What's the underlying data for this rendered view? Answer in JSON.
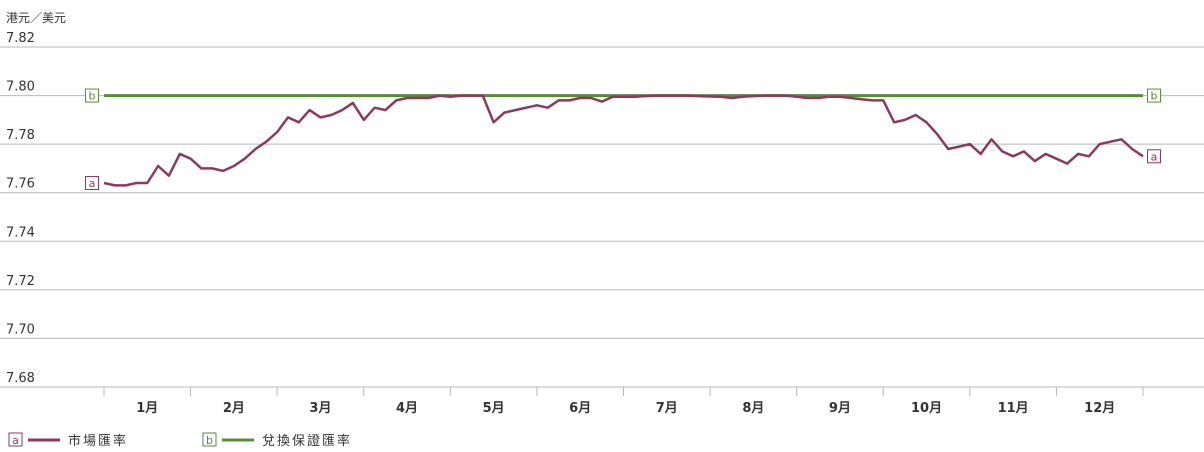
{
  "chart_data": {
    "type": "line",
    "y_label": "港元／美元",
    "ylim": [
      7.68,
      7.82
    ],
    "yticks": [
      7.68,
      {
        "value": 7.7,
        "label": "7.70"
      },
      7.72,
      7.74,
      7.76,
      7.78,
      {
        "value": 7.8,
        "label": "7.80"
      },
      7.82
    ],
    "grid": true,
    "categories": [
      null,
      null,
      null,
      null,
      "1月",
      null,
      null,
      null,
      null,
      null,
      null,
      null,
      "2月",
      null,
      null,
      null,
      null,
      null,
      null,
      null,
      "3月",
      null,
      null,
      null,
      null,
      null,
      null,
      null,
      "4月",
      null,
      null,
      null,
      null,
      null,
      null,
      null,
      "5月",
      null,
      null,
      null,
      null,
      null,
      null,
      null,
      "6月",
      null,
      null,
      null,
      null,
      null,
      null,
      null,
      "7月",
      null,
      null,
      null,
      null,
      null,
      null,
      null,
      "8月",
      null,
      null,
      null,
      null,
      null,
      null,
      null,
      "9月",
      null,
      null,
      null,
      null,
      null,
      null,
      null,
      "10月",
      null,
      null,
      null,
      null,
      null,
      null,
      null,
      "11月",
      null,
      null,
      null,
      null,
      null,
      null,
      null,
      "12月",
      null,
      null,
      null,
      null
    ],
    "series": [
      {
        "name": "市場匯率",
        "marker": "a",
        "color": "#8b3a5e",
        "values": [
          7.764,
          7.763,
          7.763,
          7.764,
          7.764,
          7.771,
          7.767,
          7.776,
          7.774,
          7.77,
          7.77,
          7.769,
          7.771,
          7.774,
          7.778,
          7.781,
          7.785,
          7.791,
          7.789,
          7.794,
          7.791,
          7.792,
          7.794,
          7.797,
          7.79,
          7.795,
          7.794,
          7.798,
          7.799,
          7.799,
          7.799,
          7.8,
          7.7995,
          7.8,
          7.8,
          7.8,
          7.789,
          7.793,
          7.794,
          7.795,
          7.796,
          7.795,
          7.798,
          7.798,
          7.799,
          7.799,
          7.7975,
          7.7995,
          7.7995,
          7.7995,
          7.7998,
          7.8,
          7.8,
          7.8,
          7.8,
          7.7998,
          7.7996,
          7.7995,
          7.799,
          7.7995,
          7.7998,
          7.8,
          7.8,
          7.8,
          7.7995,
          7.799,
          7.799,
          7.7995,
          7.7995,
          7.799,
          7.7985,
          7.798,
          7.798,
          7.789,
          7.79,
          7.792,
          7.789,
          7.784,
          7.778,
          7.779,
          7.78,
          7.776,
          7.782,
          7.777,
          7.775,
          7.777,
          7.773,
          7.776,
          7.774,
          7.772,
          7.776,
          7.775,
          7.78,
          7.781,
          7.782,
          7.778,
          7.775
        ]
      },
      {
        "name": "兌換保證匯率",
        "marker": "b",
        "color": "#5b8a3a",
        "values": [
          7.8,
          7.8,
          7.8,
          7.8,
          7.8,
          7.8,
          7.8,
          7.8,
          7.8,
          7.8,
          7.8,
          7.8,
          7.8,
          7.8,
          7.8,
          7.8,
          7.8,
          7.8,
          7.8,
          7.8,
          7.8,
          7.8,
          7.8,
          7.8,
          7.8,
          7.8,
          7.8,
          7.8,
          7.8,
          7.8,
          7.8,
          7.8,
          7.8,
          7.8,
          7.8,
          7.8,
          7.8,
          7.8,
          7.8,
          7.8,
          7.8,
          7.8,
          7.8,
          7.8,
          7.8,
          7.8,
          7.8,
          7.8,
          7.8,
          7.8,
          7.8,
          7.8,
          7.8,
          7.8,
          7.8,
          7.8,
          7.8,
          7.8,
          7.8,
          7.8,
          7.8,
          7.8,
          7.8,
          7.8,
          7.8,
          7.8,
          7.8,
          7.8,
          7.8,
          7.8,
          7.8,
          7.8,
          7.8,
          7.8,
          7.8,
          7.8,
          7.8,
          7.8,
          7.8,
          7.8,
          7.8,
          7.8,
          7.8,
          7.8,
          7.8,
          7.8,
          7.8,
          7.8,
          7.8,
          7.8,
          7.8,
          7.8,
          7.8,
          7.8,
          7.8,
          7.8,
          7.8
        ]
      }
    ]
  }
}
